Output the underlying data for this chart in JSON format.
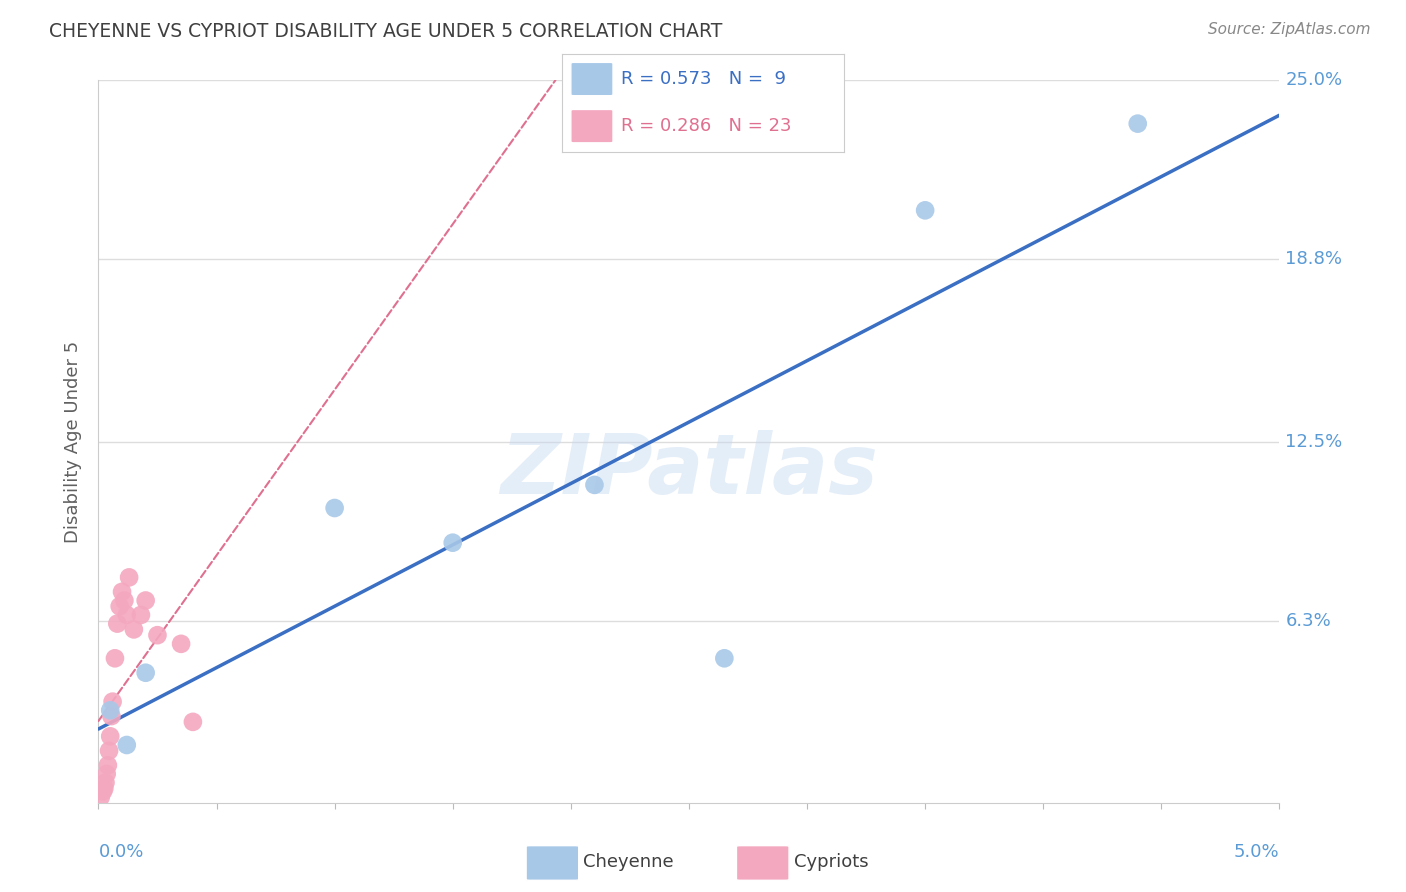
{
  "title": "CHEYENNE VS CYPRIOT DISABILITY AGE UNDER 5 CORRELATION CHART",
  "source": "Source: ZipAtlas.com",
  "ylabel": "Disability Age Under 5",
  "xlim": [
    0.0,
    5.0
  ],
  "ylim": [
    0.0,
    25.0
  ],
  "cheyenne_R": 0.573,
  "cheyenne_N": 9,
  "cypriot_R": 0.286,
  "cypriot_N": 23,
  "cheyenne_color": "#a8c8e8",
  "cypriot_color": "#f4a8c0",
  "cheyenne_line_color": "#3a6fc4",
  "cypriot_line_color": "#e07090",
  "axis_label_color": "#5b9bd5",
  "title_color": "#404040",
  "grid_color": "#dddddd",
  "cheyenne_x": [
    0.05,
    0.12,
    0.2,
    1.0,
    1.5,
    2.1,
    2.65,
    3.5,
    4.4
  ],
  "cheyenne_y": [
    3.2,
    2.0,
    4.5,
    10.2,
    9.0,
    11.0,
    5.0,
    20.5,
    23.5
  ],
  "cypriot_x": [
    0.01,
    0.02,
    0.025,
    0.03,
    0.035,
    0.04,
    0.045,
    0.05,
    0.055,
    0.06,
    0.07,
    0.08,
    0.09,
    0.1,
    0.11,
    0.12,
    0.13,
    0.15,
    0.18,
    0.2,
    0.25,
    0.35,
    0.4
  ],
  "cypriot_y": [
    0.2,
    0.4,
    0.5,
    0.7,
    1.0,
    1.3,
    1.8,
    2.3,
    3.0,
    3.5,
    5.0,
    6.2,
    6.8,
    7.3,
    7.0,
    6.5,
    7.8,
    6.0,
    6.5,
    7.0,
    5.8,
    5.5,
    2.8
  ],
  "ytick_vals": [
    6.3,
    12.5,
    18.8,
    25.0
  ],
  "ytick_labels": [
    "6.3%",
    "12.5%",
    "18.8%",
    "25.0%"
  ],
  "watermark": "ZIPatlas"
}
